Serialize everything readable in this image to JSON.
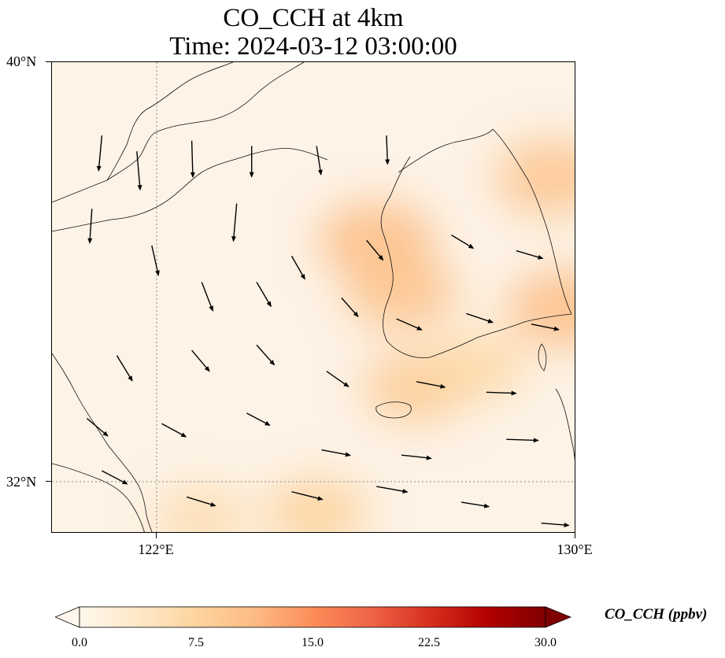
{
  "title": {
    "line1": "CO_CCH at 4km",
    "line2": "Time: 2024-03-12 03:00:00"
  },
  "map": {
    "extent": {
      "lon_min": 119.5,
      "lon_max": 130.0,
      "lat_min": 31.0,
      "lat_max": 40.0
    },
    "lat_labels": [
      {
        "lat": 40,
        "text": "40°N"
      },
      {
        "lat": 32,
        "text": "32°N"
      }
    ],
    "lon_labels": [
      {
        "lon": 122,
        "text": "122°E"
      },
      {
        "lon": 130,
        "text": "130°E"
      }
    ],
    "gridlines": {
      "lon": [
        122
      ],
      "lat": [
        32
      ],
      "style": "dotted"
    },
    "features": [
      "coastlines",
      "country borders",
      "wind vectors"
    ]
  },
  "colorbar": {
    "variable": "CO_CCH",
    "title": "CO_CCH (ppbv)",
    "min": 0.0,
    "max": 30.0,
    "extend": "both",
    "colormap": "OrRd",
    "ticks": [
      "0.0",
      "7.5",
      "15.0",
      "22.5",
      "30.0"
    ],
    "colors": [
      "#fff7ec",
      "#fee8c8",
      "#fdd49e",
      "#fdbb84",
      "#fc8d59",
      "#ef6548",
      "#d7301f",
      "#b30000",
      "#7f0000"
    ]
  },
  "chart_data": {
    "type": "heatmap",
    "title": "CO_CCH at 4km",
    "subtitle": "Time: 2024-03-12 03:00:00",
    "xlabel": "",
    "ylabel": "",
    "xlim": [
      119.5,
      130.0
    ],
    "ylim": [
      31.0,
      40.0
    ],
    "value_range": [
      0.0,
      30.0
    ],
    "units": "ppbv",
    "field_hotspots": [
      {
        "lon": 126.0,
        "lat": 36.6,
        "value": 11
      },
      {
        "lon": 126.5,
        "lat": 35.6,
        "value": 10
      },
      {
        "lon": 129.8,
        "lat": 35.3,
        "value": 11
      },
      {
        "lon": 129.5,
        "lat": 37.8,
        "value": 10
      },
      {
        "lon": 126.8,
        "lat": 33.8,
        "value": 9
      },
      {
        "lon": 124.8,
        "lat": 31.4,
        "value": 8
      },
      {
        "lon": 128.0,
        "lat": 34.2,
        "value": 7
      },
      {
        "lon": 122.5,
        "lat": 31.3,
        "value": 6
      }
    ],
    "wind_vectors": [
      {
        "lon": 120.5,
        "lat": 38.6,
        "u": -0.3,
        "v": -3.2
      },
      {
        "lon": 121.2,
        "lat": 38.3,
        "u": 0.3,
        "v": -3.5
      },
      {
        "lon": 122.3,
        "lat": 38.5,
        "u": 0.1,
        "v": -3.3
      },
      {
        "lon": 123.5,
        "lat": 38.4,
        "u": 0.0,
        "v": -2.8
      },
      {
        "lon": 124.8,
        "lat": 38.4,
        "u": 0.4,
        "v": -2.6
      },
      {
        "lon": 126.2,
        "lat": 38.6,
        "u": 0.1,
        "v": -2.6
      },
      {
        "lon": 123.2,
        "lat": 37.3,
        "u": -0.3,
        "v": -3.4
      },
      {
        "lon": 120.3,
        "lat": 37.2,
        "u": -0.2,
        "v": -3.1
      },
      {
        "lon": 121.5,
        "lat": 36.5,
        "u": 0.6,
        "v": -2.7
      },
      {
        "lon": 124.3,
        "lat": 36.3,
        "u": 1.2,
        "v": -2.1
      },
      {
        "lon": 125.8,
        "lat": 36.6,
        "u": 1.5,
        "v": -1.8
      },
      {
        "lon": 127.5,
        "lat": 36.7,
        "u": 2.0,
        "v": -1.2
      },
      {
        "lon": 128.8,
        "lat": 36.4,
        "u": 2.4,
        "v": -0.7
      },
      {
        "lon": 122.5,
        "lat": 35.8,
        "u": 1.0,
        "v": -2.6
      },
      {
        "lon": 123.6,
        "lat": 35.8,
        "u": 1.3,
        "v": -2.2
      },
      {
        "lon": 125.3,
        "lat": 35.5,
        "u": 1.5,
        "v": -1.7
      },
      {
        "lon": 126.4,
        "lat": 35.1,
        "u": 2.3,
        "v": -1.0
      },
      {
        "lon": 127.8,
        "lat": 35.2,
        "u": 2.4,
        "v": -0.8
      },
      {
        "lon": 129.1,
        "lat": 35.0,
        "u": 2.5,
        "v": -0.5
      },
      {
        "lon": 120.8,
        "lat": 34.4,
        "u": 1.4,
        "v": -2.3
      },
      {
        "lon": 122.3,
        "lat": 34.5,
        "u": 1.6,
        "v": -1.9
      },
      {
        "lon": 123.6,
        "lat": 34.6,
        "u": 1.6,
        "v": -1.8
      },
      {
        "lon": 125.0,
        "lat": 34.1,
        "u": 2.0,
        "v": -1.4
      },
      {
        "lon": 126.8,
        "lat": 33.9,
        "u": 2.6,
        "v": -0.5
      },
      {
        "lon": 128.2,
        "lat": 33.7,
        "u": 2.7,
        "v": -0.1
      },
      {
        "lon": 120.2,
        "lat": 33.2,
        "u": 1.9,
        "v": -1.6
      },
      {
        "lon": 121.7,
        "lat": 33.1,
        "u": 2.2,
        "v": -1.2
      },
      {
        "lon": 123.4,
        "lat": 33.3,
        "u": 2.1,
        "v": -1.1
      },
      {
        "lon": 124.9,
        "lat": 32.6,
        "u": 2.6,
        "v": -0.5
      },
      {
        "lon": 126.5,
        "lat": 32.5,
        "u": 2.7,
        "v": -0.3
      },
      {
        "lon": 128.6,
        "lat": 32.8,
        "u": 2.9,
        "v": -0.1
      },
      {
        "lon": 120.5,
        "lat": 32.2,
        "u": 2.3,
        "v": -1.2
      },
      {
        "lon": 122.2,
        "lat": 31.7,
        "u": 2.6,
        "v": -0.8
      },
      {
        "lon": 124.3,
        "lat": 31.8,
        "u": 2.8,
        "v": -0.7
      },
      {
        "lon": 126.0,
        "lat": 31.9,
        "u": 2.8,
        "v": -0.5
      },
      {
        "lon": 127.7,
        "lat": 31.6,
        "u": 2.5,
        "v": -0.4
      },
      {
        "lon": 129.3,
        "lat": 31.2,
        "u": 2.5,
        "v": -0.2
      }
    ]
  }
}
